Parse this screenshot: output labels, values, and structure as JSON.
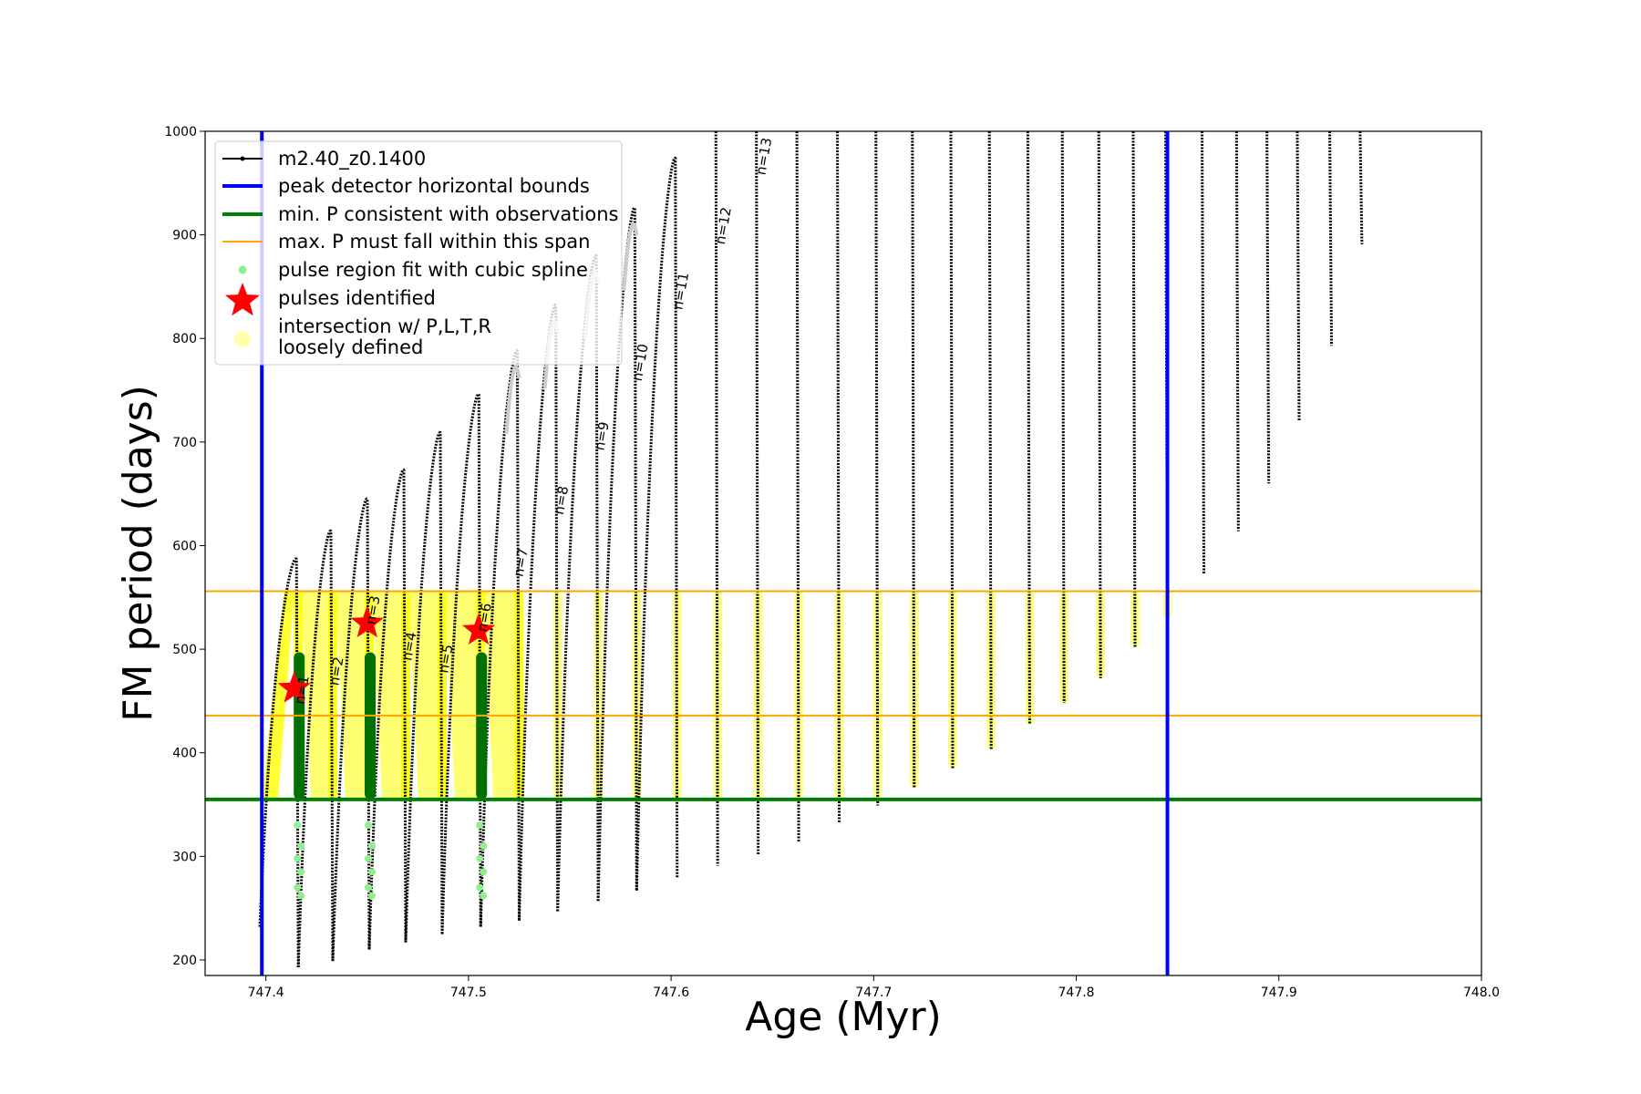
{
  "chart_data": {
    "type": "line",
    "xlabel": "Age (Myr)",
    "ylabel": "FM period (days)",
    "xlim": [
      747.37,
      748.0
    ],
    "ylim": [
      185,
      1000
    ],
    "xticks": [
      "747.4",
      "747.5",
      "747.6",
      "747.7",
      "747.8",
      "747.9",
      "748.0"
    ],
    "xtick_values": [
      747.4,
      747.5,
      747.6,
      747.7,
      747.8,
      747.9,
      748.0
    ],
    "yticks": [
      "200",
      "300",
      "400",
      "500",
      "600",
      "700",
      "800",
      "900",
      "1000"
    ],
    "ytick_values": [
      200,
      300,
      400,
      500,
      600,
      700,
      800,
      900,
      1000
    ],
    "grid": false,
    "legend_position": "upper-left",
    "legend": [
      {
        "label": "m2.40_z0.1400",
        "kind": "line-marker",
        "color": "#000000"
      },
      {
        "label": "peak detector horizontal bounds",
        "kind": "line",
        "color": "#0000ff"
      },
      {
        "label": "min. P consistent with observations",
        "kind": "line",
        "color": "#008000"
      },
      {
        "label": "max. P must fall within this span",
        "kind": "thin-line",
        "color": "#ffa500"
      },
      {
        "label": "pulse region fit with cubic spline",
        "kind": "dot",
        "color": "#90ee90"
      },
      {
        "label": "pulses identified",
        "kind": "star",
        "color": "#ff0000"
      },
      {
        "label": "intersection w/ P,L,T,R",
        "label2": "loosely defined",
        "kind": "blob",
        "color": "#ffffaa"
      }
    ],
    "peak_detector_bounds_x": [
      747.398,
      747.845
    ],
    "min_P": 355,
    "max_P_span": [
      436,
      556
    ],
    "colors": {
      "track": "#000000",
      "track_gray": "#cccccc",
      "bounds": "#0000ff",
      "min_p": "#008000",
      "span": "#ffa500",
      "spline": "#90ee90",
      "spline_dark": "#007000",
      "star": "#ff0000",
      "loose": "#ffff00"
    },
    "pulses": [
      {
        "x": 747.416,
        "max": 587,
        "min": 193
      },
      {
        "x": 747.433,
        "max": 614,
        "min": 199
      },
      {
        "x": 747.451,
        "max": 645,
        "min": 210
      },
      {
        "x": 747.469,
        "max": 673,
        "min": 217
      },
      {
        "x": 747.487,
        "max": 709,
        "min": 225
      },
      {
        "x": 747.506,
        "max": 746,
        "min": 232
      },
      {
        "x": 747.525,
        "max": 788,
        "min": 238
      },
      {
        "x": 747.544,
        "max": 832,
        "min": 247
      },
      {
        "x": 747.564,
        "max": 880,
        "min": 257
      },
      {
        "x": 747.583,
        "max": 926,
        "min": 267
      },
      {
        "x": 747.603,
        "max": 974,
        "min": 279
      },
      {
        "x": 747.623,
        "max": 1000,
        "min": 291
      },
      {
        "x": 747.643,
        "max": 1000,
        "min": 302
      },
      {
        "x": 747.663,
        "max": 1000,
        "min": 313
      },
      {
        "x": 747.683,
        "max": 1000,
        "min": 333
      },
      {
        "x": 747.702,
        "max": 1000,
        "min": 349
      },
      {
        "x": 747.72,
        "max": 1000,
        "min": 366
      },
      {
        "x": 747.739,
        "max": 1000,
        "min": 385
      },
      {
        "x": 747.758,
        "max": 1000,
        "min": 403
      },
      {
        "x": 747.777,
        "max": 1000,
        "min": 427
      },
      {
        "x": 747.794,
        "max": 1000,
        "min": 448
      },
      {
        "x": 747.812,
        "max": 1000,
        "min": 472
      },
      {
        "x": 747.829,
        "max": 1000,
        "min": 502
      },
      {
        "x": 747.845,
        "max": 1000,
        "min": 530
      },
      {
        "x": 747.863,
        "max": 1000,
        "min": 573
      },
      {
        "x": 747.88,
        "max": 1000,
        "min": 614
      },
      {
        "x": 747.895,
        "max": 1000,
        "min": 660
      },
      {
        "x": 747.91,
        "max": 1000,
        "min": 720
      },
      {
        "x": 747.926,
        "max": 1000,
        "min": 793
      },
      {
        "x": 747.941,
        "max": 1000,
        "min": 891
      }
    ],
    "pulse_labels": [
      {
        "label": "n=1",
        "x": 747.42,
        "y": 460
      },
      {
        "label": "n=2",
        "x": 747.437,
        "y": 478
      },
      {
        "label": "n=3",
        "x": 747.455,
        "y": 537
      },
      {
        "label": "n=4",
        "x": 747.473,
        "y": 502
      },
      {
        "label": "n=5",
        "x": 747.491,
        "y": 490
      },
      {
        "label": "n=6",
        "x": 747.51,
        "y": 530
      },
      {
        "label": "n=7",
        "x": 747.528,
        "y": 583
      },
      {
        "label": "n=8",
        "x": 747.548,
        "y": 643
      },
      {
        "label": "n=9",
        "x": 747.568,
        "y": 705
      },
      {
        "label": "n=10",
        "x": 747.587,
        "y": 776
      },
      {
        "label": "n=11",
        "x": 747.607,
        "y": 845
      },
      {
        "label": "n=12",
        "x": 747.628,
        "y": 908
      },
      {
        "label": "n=13",
        "x": 747.648,
        "y": 975
      }
    ],
    "pulses_identified": [
      {
        "x": 747.414,
        "y": 462
      },
      {
        "x": 747.45,
        "y": 525
      },
      {
        "x": 747.505,
        "y": 518
      }
    ],
    "spline_pulses": [
      0,
      2,
      5
    ]
  }
}
